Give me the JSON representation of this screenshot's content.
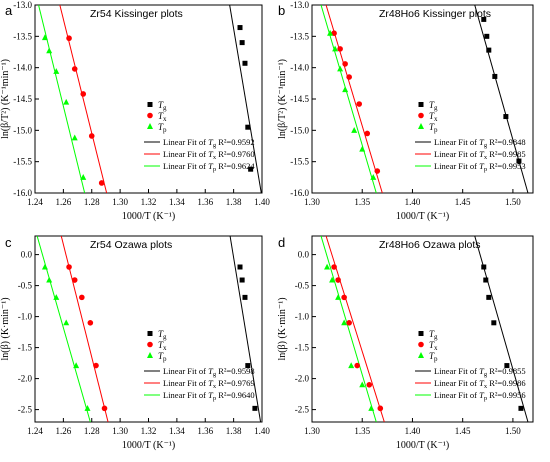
{
  "chart_data": [
    {
      "type": "scatter",
      "panel_letter": "a",
      "title": "Zr54 Kissinger plots",
      "xlabel": "1000/T (K⁻¹)",
      "ylabel": "ln(β/T²) (K⁻¹min⁻¹)",
      "xlim": [
        1.24,
        1.4
      ],
      "ylim": [
        -16.0,
        -13.0
      ],
      "xticks": [
        "1.24",
        "1.26",
        "1.28",
        "1.30",
        "1.32",
        "1.34",
        "1.36",
        "1.38",
        "1.40"
      ],
      "yticks": [
        "-13.0",
        "-13.5",
        "-14.0",
        "-14.5",
        "-15.0",
        "-15.5",
        "-16.0"
      ],
      "legend_position": "lower-right",
      "series": [
        {
          "name": "Tg",
          "sub": "g",
          "color": "#000000",
          "marker": "square",
          "x": [
            1.3845,
            1.386,
            1.388,
            1.39,
            1.392
          ],
          "y": [
            -13.36,
            -13.6,
            -13.93,
            -14.95,
            -15.62
          ],
          "fit_label": "Linear Fit of Tg R²=0.9592",
          "fit_sub": "g",
          "fit_r2": "R²=0.9592",
          "fit_line": [
            [
              1.3772,
              -13.0
            ],
            [
              1.3995,
              -16.0
            ]
          ]
        },
        {
          "name": "Tx",
          "sub": "x",
          "color": "#ff0000",
          "marker": "circle",
          "x": [
            1.264,
            1.268,
            1.274,
            1.28,
            1.287
          ],
          "y": [
            -13.53,
            -14.02,
            -14.42,
            -15.09,
            -15.84
          ],
          "fit_label": "Linear Fit of Tx R²=0.9760",
          "fit_sub": "x",
          "fit_r2": "R²=0.9760",
          "fit_line": [
            [
              1.2575,
              -13.0
            ],
            [
              1.2905,
              -16.0
            ]
          ]
        },
        {
          "name": "Tp",
          "sub": "p",
          "color": "#00ff00",
          "marker": "triangle",
          "x": [
            1.247,
            1.25,
            1.255,
            1.262,
            1.268,
            1.274
          ],
          "y": [
            -13.52,
            -13.73,
            -14.06,
            -14.55,
            -15.12,
            -15.75
          ],
          "fit_label": "Linear Fit of Tp R²=0.9624",
          "fit_sub": "p",
          "fit_r2": "R²=0.9624",
          "fit_line": [
            [
              1.2425,
              -13.0
            ],
            [
              1.275,
              -16.0
            ]
          ]
        }
      ]
    },
    {
      "type": "scatter",
      "panel_letter": "b",
      "title": "Zr48Ho6 Kissinger plots",
      "xlabel": "1000/T (K⁻¹)",
      "ylabel": "ln(β/T²) (K⁻¹min⁻¹)",
      "xlim": [
        1.3,
        1.52
      ],
      "ylim": [
        -16.0,
        -13.0
      ],
      "xticks": [
        "1.30",
        "1.35",
        "1.40",
        "1.45",
        "1.50"
      ],
      "yticks": [
        "-13.0",
        "-13.5",
        "-14.0",
        "-14.5",
        "-15.0",
        "-15.5",
        "-16.0"
      ],
      "legend_position": "lower-right",
      "series": [
        {
          "name": "Tg",
          "sub": "g",
          "color": "#000000",
          "marker": "square",
          "x": [
            1.471,
            1.474,
            1.476,
            1.482,
            1.493,
            1.506
          ],
          "y": [
            -13.23,
            -13.5,
            -13.72,
            -14.14,
            -14.78,
            -15.49
          ],
          "fit_label": "Linear Fit of Tg R²=0.9848",
          "fit_sub": "g",
          "fit_r2": "R²=0.9848",
          "fit_line": [
            [
              1.462,
              -13.0
            ],
            [
              1.515,
              -16.0
            ]
          ]
        },
        {
          "name": "Tx",
          "sub": "x",
          "color": "#ff0000",
          "marker": "circle",
          "x": [
            1.322,
            1.328,
            1.333,
            1.337,
            1.347,
            1.355,
            1.365
          ],
          "y": [
            -13.45,
            -13.7,
            -13.94,
            -14.15,
            -14.58,
            -15.05,
            -15.65
          ],
          "fit_label": "Linear Fit of Tx R²=0.9985",
          "fit_sub": "x",
          "fit_r2": "R²=0.9985",
          "fit_line": [
            [
              1.314,
              -13.0
            ],
            [
              1.37,
              -16.0
            ]
          ]
        },
        {
          "name": "Tp",
          "sub": "p",
          "color": "#00ff00",
          "marker": "triangle",
          "x": [
            1.318,
            1.323,
            1.328,
            1.333,
            1.342,
            1.35,
            1.361
          ],
          "y": [
            -13.45,
            -13.7,
            -14.02,
            -14.35,
            -15.0,
            -15.3,
            -15.75
          ],
          "fit_label": "Linear Fit of Tp R²=0.9953",
          "fit_sub": "p",
          "fit_r2": "R²=0.9953",
          "fit_line": [
            [
              1.309,
              -13.0
            ],
            [
              1.364,
              -16.0
            ]
          ]
        }
      ]
    },
    {
      "type": "scatter",
      "panel_letter": "c",
      "title": "Zr54 Ozawa plots",
      "xlabel": "1000/T (K⁻¹)",
      "ylabel": "ln(β) (K·min⁻¹)",
      "xlim": [
        1.24,
        1.4
      ],
      "ylim": [
        -2.7,
        0.3
      ],
      "xticks": [
        "1.24",
        "1.26",
        "1.28",
        "1.30",
        "1.32",
        "1.34",
        "1.36",
        "1.38",
        "1.40"
      ],
      "yticks": [
        "0.0",
        "-0.5",
        "-1.0",
        "-1.5",
        "-2.0",
        "-2.5"
      ],
      "legend_position": "lower-right",
      "series": [
        {
          "name": "Tg",
          "sub": "g",
          "color": "#000000",
          "marker": "square",
          "x": [
            1.3845,
            1.386,
            1.388,
            1.39,
            1.395
          ],
          "y": [
            -0.2,
            -0.41,
            -0.69,
            -1.79,
            -2.48
          ],
          "fit_label": "Linear Fit of Tg R²=0.9598",
          "fit_sub": "g",
          "fit_r2": "R²=0.9598",
          "fit_line": [
            [
              1.3775,
              0.3
            ],
            [
              1.399,
              -2.7
            ]
          ]
        },
        {
          "name": "Tx",
          "sub": "x",
          "color": "#ff0000",
          "marker": "circle",
          "x": [
            1.264,
            1.268,
            1.273,
            1.279,
            1.283,
            1.289
          ],
          "y": [
            -0.2,
            -0.41,
            -0.69,
            -1.1,
            -1.79,
            -2.48
          ],
          "fit_label": "Linear Fit of Tx R²=0.9769",
          "fit_sub": "x",
          "fit_r2": "R²=0.9769",
          "fit_line": [
            [
              1.2585,
              0.3
            ],
            [
              1.2915,
              -2.7
            ]
          ]
        },
        {
          "name": "Tp",
          "sub": "p",
          "color": "#00ff00",
          "marker": "triangle",
          "x": [
            1.247,
            1.25,
            1.255,
            1.262,
            1.269,
            1.277
          ],
          "y": [
            -0.2,
            -0.41,
            -0.69,
            -1.1,
            -1.79,
            -2.48
          ],
          "fit_label": "Linear Fit of Tp R²=0.9640",
          "fit_sub": "p",
          "fit_r2": "R²=0.9640",
          "fit_line": [
            [
              1.2415,
              0.3
            ],
            [
              1.279,
              -2.7
            ]
          ]
        }
      ]
    },
    {
      "type": "scatter",
      "panel_letter": "d",
      "title": "Zr48Ho6 Ozawa plots",
      "xlabel": "1000/T (K⁻¹)",
      "ylabel": "ln(β) (K·min⁻¹)",
      "xlim": [
        1.3,
        1.52
      ],
      "ylim": [
        -2.7,
        0.3
      ],
      "xticks": [
        "1.30",
        "1.35",
        "1.40",
        "1.45",
        "1.50"
      ],
      "yticks": [
        "0.0",
        "-0.5",
        "-1.0",
        "-1.5",
        "-2.0",
        "-2.5"
      ],
      "legend_position": "lower-right",
      "series": [
        {
          "name": "Tg",
          "sub": "g",
          "color": "#000000",
          "marker": "square",
          "x": [
            1.471,
            1.473,
            1.476,
            1.481,
            1.494,
            1.508
          ],
          "y": [
            -0.2,
            -0.41,
            -0.69,
            -1.1,
            -1.79,
            -2.48
          ],
          "fit_label": "Linear Fit of Tg R²=0.9855",
          "fit_sub": "g",
          "fit_r2": "R²=0.9855",
          "fit_line": [
            [
              1.462,
              0.3
            ],
            [
              1.515,
              -2.7
            ]
          ]
        },
        {
          "name": "Tx",
          "sub": "x",
          "color": "#ff0000",
          "marker": "circle",
          "x": [
            1.322,
            1.326,
            1.332,
            1.337,
            1.345,
            1.357,
            1.368
          ],
          "y": [
            -0.2,
            -0.41,
            -0.69,
            -1.1,
            -1.79,
            -2.1,
            -2.48
          ],
          "fit_label": "Linear Fit of Tx R²=0.9986",
          "fit_sub": "x",
          "fit_r2": "R²=0.9986",
          "fit_line": [
            [
              1.314,
              0.3
            ],
            [
              1.372,
              -2.7
            ]
          ]
        },
        {
          "name": "Tp",
          "sub": "p",
          "color": "#00ff00",
          "marker": "triangle",
          "x": [
            1.315,
            1.32,
            1.326,
            1.332,
            1.339,
            1.35,
            1.359
          ],
          "y": [
            -0.2,
            -0.41,
            -0.69,
            -1.1,
            -1.79,
            -2.1,
            -2.48
          ],
          "fit_label": "Linear Fit of Tp R²=0.9956",
          "fit_sub": "p",
          "fit_r2": "R²=0.9956",
          "fit_line": [
            [
              1.309,
              0.3
            ],
            [
              1.364,
              -2.7
            ]
          ]
        }
      ]
    }
  ]
}
